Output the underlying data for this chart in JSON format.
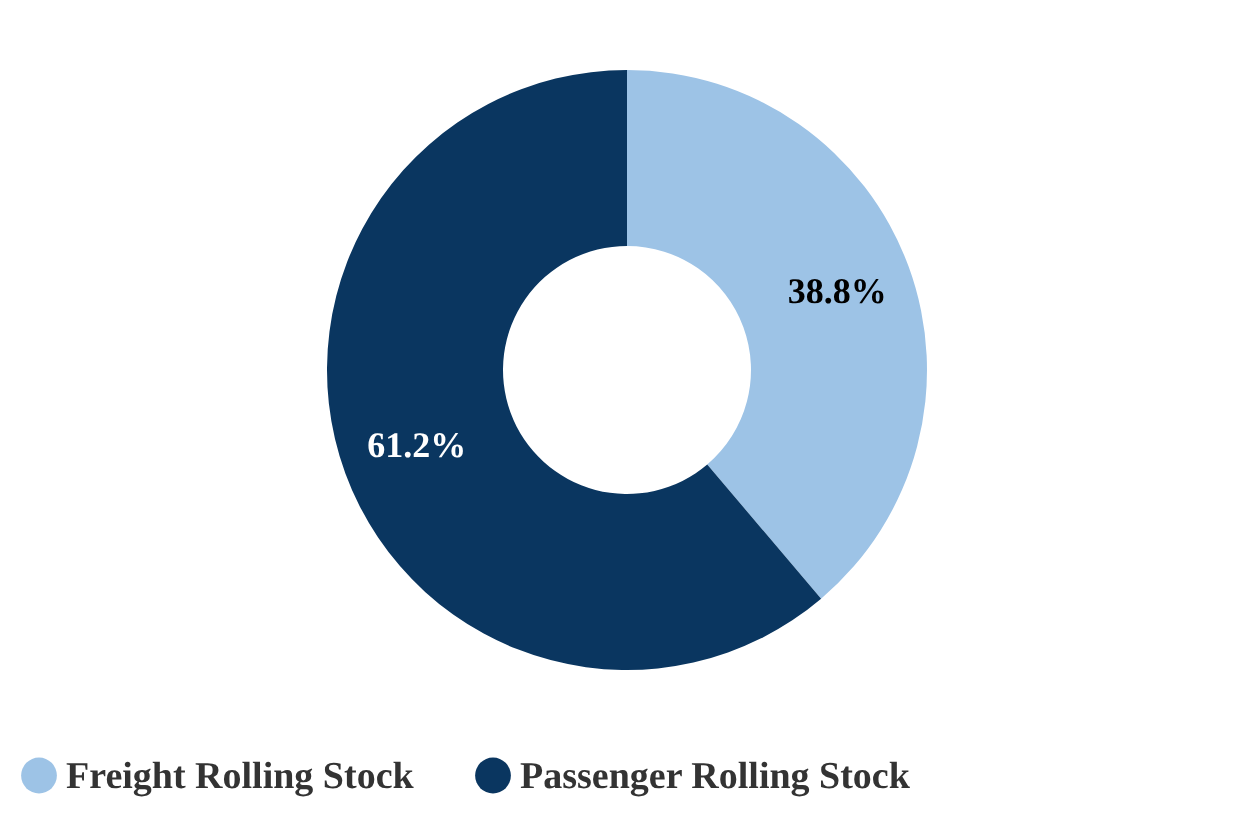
{
  "chart_data": {
    "type": "donut",
    "categories": [
      "Freight Rolling Stock",
      "Passenger Rolling Stock"
    ],
    "values": [
      38.8,
      61.2
    ],
    "colors": [
      "#9dc3e6",
      "#0a3660"
    ],
    "value_labels": [
      "38.8%",
      "61.2%"
    ],
    "legend": "bottom"
  }
}
